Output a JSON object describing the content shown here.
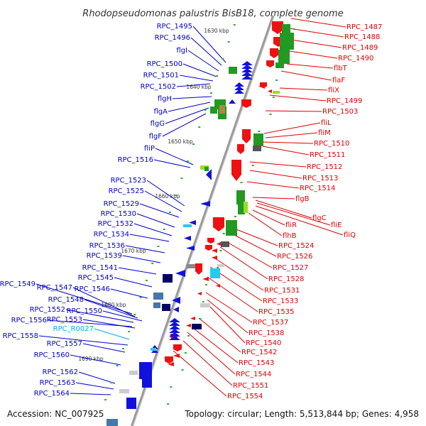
{
  "title": "Rhodopseudomonas palustris BisB18, complete genome",
  "accession": "Accession: NC_007925",
  "topology": "Topology: circular; Length: 5,513,844 bp; Genes: 4,958",
  "colors": {
    "left_label": "#0000cc",
    "left_label_rna": "#00aaee",
    "right_label": "#dd0000",
    "backbone": "#999999",
    "red": "#ee1111",
    "blue": "#1111dd",
    "green": "#229922",
    "dark_navy": "#000066",
    "steel_blue": "#4477aa",
    "cyan": "#22ccee",
    "grey": "#888888",
    "light_grey": "#cccccc",
    "lime": "#99dd22",
    "dot": "#33aa33"
  },
  "scale_ticks": [
    "1630 kbp",
    "1640 kbp",
    "1650 kbp",
    "1660 kbp",
    "1670 kbp",
    "1680 kbp",
    "1690 kbp"
  ],
  "left_labels": [
    {
      "text": "RPC_1495"
    },
    {
      "text": "RPC_1496"
    },
    {
      "text": "flgI"
    },
    {
      "text": "RPC_1500"
    },
    {
      "text": "RPC_1501"
    },
    {
      "text": "RPC_1502"
    },
    {
      "text": "flgH"
    },
    {
      "text": "flgA"
    },
    {
      "text": "flgG"
    },
    {
      "text": "flgF"
    },
    {
      "text": "fliP"
    },
    {
      "text": "RPC_1516"
    },
    {
      "text": "RPC_1523"
    },
    {
      "text": "RPC_1525"
    },
    {
      "text": "RPC_1529"
    },
    {
      "text": "RPC_1530"
    },
    {
      "text": "RPC_1532"
    },
    {
      "text": "RPC_1534"
    },
    {
      "text": "RPC_1536"
    },
    {
      "text": "RPC_1539"
    },
    {
      "text": "RPC_1541"
    },
    {
      "text": "RPC_1545"
    },
    {
      "text": "RPC_1549"
    },
    {
      "text": "RPC_1547"
    },
    {
      "text": "RPC_1546"
    },
    {
      "text": "RPC_1548"
    },
    {
      "text": "RPC_1552"
    },
    {
      "text": "RPC_1550"
    },
    {
      "text": "RPC_1556"
    },
    {
      "text": "RPC_1553"
    },
    {
      "text": "RPC_R0027"
    },
    {
      "text": "RPC_1558"
    },
    {
      "text": "RPC_1557"
    },
    {
      "text": "RPC_1560"
    },
    {
      "text": "RPC_1562"
    },
    {
      "text": "RPC_1563"
    },
    {
      "text": "RPC_1564"
    }
  ],
  "right_labels": [
    {
      "text": "RPC_1487"
    },
    {
      "text": "RPC_1488"
    },
    {
      "text": "RPC_1489"
    },
    {
      "text": "RPC_1490"
    },
    {
      "text": "flbT"
    },
    {
      "text": "flaF"
    },
    {
      "text": "fliX"
    },
    {
      "text": "RPC_1499"
    },
    {
      "text": "RPC_1503"
    },
    {
      "text": "fliL"
    },
    {
      "text": "fliM"
    },
    {
      "text": "RPC_1510"
    },
    {
      "text": "RPC_1511"
    },
    {
      "text": "RPC_1512"
    },
    {
      "text": "RPC_1513"
    },
    {
      "text": "RPC_1514"
    },
    {
      "text": "flgB"
    },
    {
      "text": "flgC"
    },
    {
      "text": "fliE"
    },
    {
      "text": "fliQ"
    },
    {
      "text": "fliR"
    },
    {
      "text": "flhB"
    },
    {
      "text": "RPC_1524"
    },
    {
      "text": "RPC_1526"
    },
    {
      "text": "RPC_1527"
    },
    {
      "text": "RPC_1528"
    },
    {
      "text": "RPC_1531"
    },
    {
      "text": "RPC_1533"
    },
    {
      "text": "RPC_1535"
    },
    {
      "text": "RPC_1537"
    },
    {
      "text": "RPC_1538"
    },
    {
      "text": "RPC_1540"
    },
    {
      "text": "RPC_1542"
    },
    {
      "text": "RPC_1543"
    },
    {
      "text": "RPC_1544"
    },
    {
      "text": "RPC_1551"
    },
    {
      "text": "RPC_1554"
    }
  ]
}
